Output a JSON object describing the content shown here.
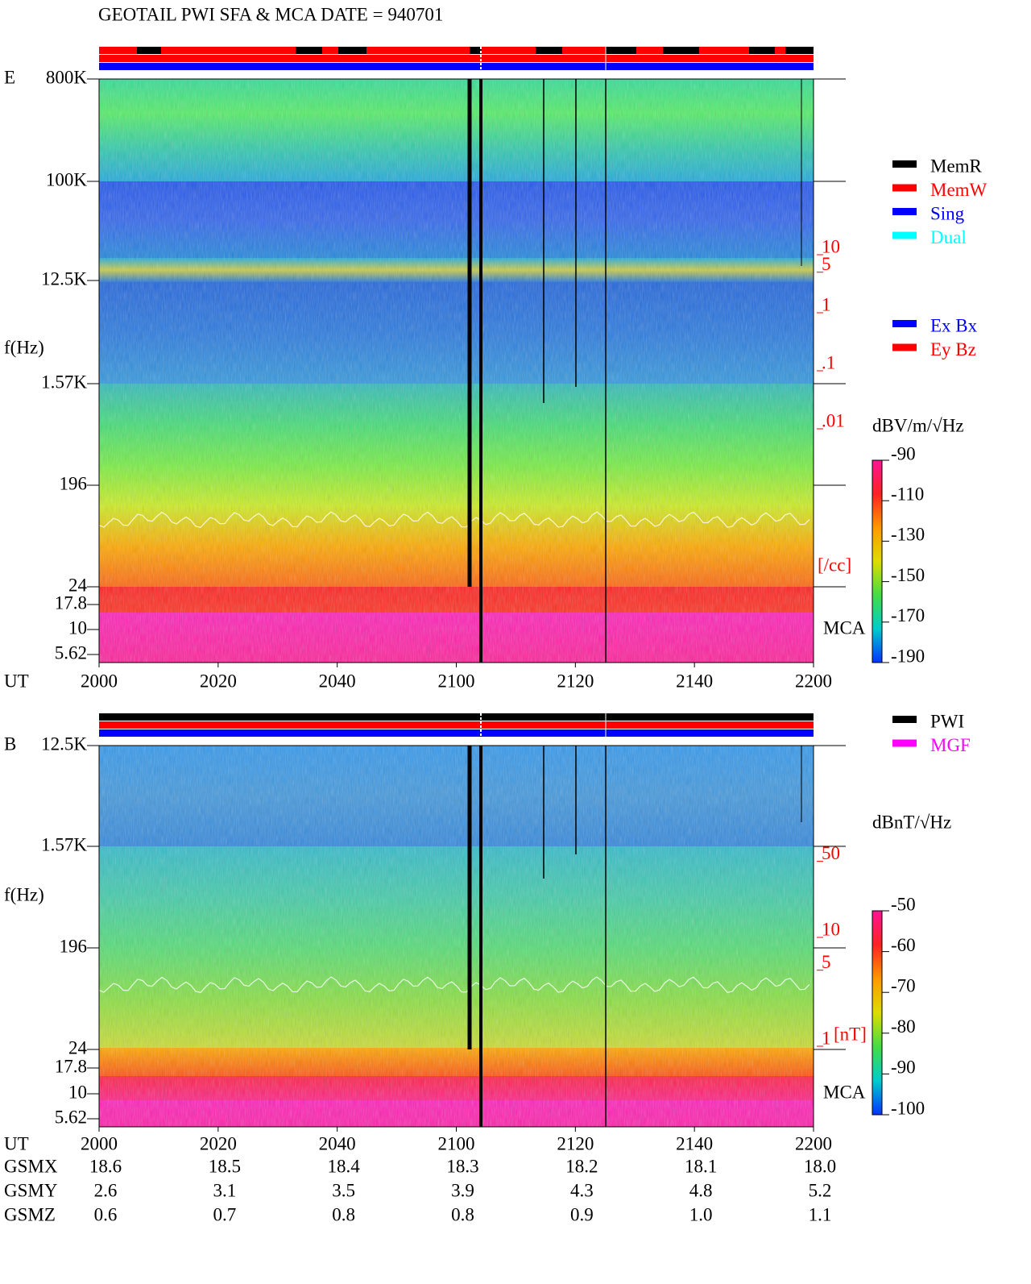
{
  "title": "GEOTAIL  PWI SFA & MCA   DATE = 940701",
  "panels": [
    {
      "label": "E",
      "ylabel": "f(Hz)",
      "yticks": [
        "800K",
        "100K",
        "12.5K",
        "1.57K",
        "196",
        "24",
        "17.8",
        "10",
        "5.62"
      ],
      "xlabel": "UT",
      "xticks": [
        "2000",
        "2020",
        "2040",
        "2100",
        "2120",
        "2140",
        "2200"
      ],
      "colorbar_label": "dBV/m/√Hz",
      "clim": [
        -190,
        -90
      ],
      "colorbar_ticks": [
        -90,
        -110,
        -130,
        -150,
        -170,
        -190
      ],
      "density_ticks": [
        10,
        5,
        1,
        {
          "value": 0.1,
          "label": ".1"
        },
        {
          "value": 0.01,
          "label": ".01"
        }
      ],
      "density_unit": "[/cc]",
      "mca_label": "MCA"
    },
    {
      "label": "B",
      "ylabel": "f(Hz)",
      "yticks": [
        "12.5K",
        "1.57K",
        "196",
        "24",
        "17.8",
        "10",
        "5.62"
      ],
      "xlabel": "UT",
      "xticks": [
        "2000",
        "2020",
        "2040",
        "2100",
        "2120",
        "2140",
        "2200"
      ],
      "colorbar_label": "dBnT/√Hz",
      "clim": [
        -100,
        -50
      ],
      "colorbar_ticks": [
        -50,
        -60,
        -70,
        -80,
        -90,
        -100
      ],
      "density_ticks": [
        50,
        10,
        5,
        1
      ],
      "density_unit": "[nT]",
      "mca_label": "MCA"
    }
  ],
  "legend_mode": [
    {
      "label": "MemR",
      "color": "#000000"
    },
    {
      "label": "MemW",
      "color": "#ff0000"
    },
    {
      "label": "Sing",
      "color": "#0000ff"
    },
    {
      "label": "Dual",
      "color": "#00ffff"
    }
  ],
  "legend_antenna": [
    {
      "label": "Ex Bx",
      "color": "#0000ff"
    },
    {
      "label": "Ey Bz",
      "color": "#ff0000"
    }
  ],
  "legend_source": [
    {
      "label": "PWI",
      "color": "#000000"
    },
    {
      "label": "MGF",
      "color": "#ff00ff"
    }
  ],
  "ephemeris": {
    "labels": [
      "GSMX",
      "GSMY",
      "GSMZ"
    ],
    "rows": [
      [
        18.6,
        18.5,
        18.4,
        18.3,
        18.2,
        18.1,
        {
          "value": 18,
          "label": "18.0"
        }
      ],
      [
        2.6,
        3.1,
        3.5,
        3.9,
        4.3,
        4.8,
        5.2
      ],
      [
        0.6,
        0.7,
        0.8,
        0.8,
        0.9,
        {
          "value": 1,
          "label": "1.0"
        },
        1.1
      ]
    ]
  }
}
